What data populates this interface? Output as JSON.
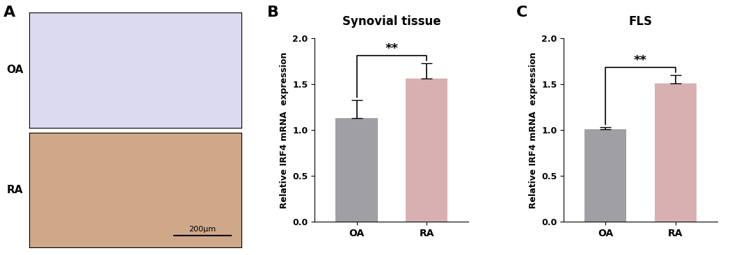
{
  "image_panel": {
    "panel": "A",
    "rows": [
      "OA",
      "RA"
    ],
    "scale_bar": "200µm"
  },
  "chart_data": [
    {
      "type": "bar",
      "panel": "B",
      "title": "Synovial tissue",
      "y_label": "Relative IRF4 mRNA  expression",
      "categories": [
        "OA",
        "RA"
      ],
      "values": [
        1.13,
        1.56
      ],
      "errors": [
        0.2,
        0.17
      ],
      "colors": [
        "#a09fa4",
        "#d9b0b1"
      ],
      "ylim": [
        0,
        2.0
      ],
      "yticks": [
        {
          "value": 0,
          "label": "0.0"
        },
        {
          "value": 0.5,
          "label": "0.5"
        },
        {
          "value": 1.0,
          "label": "1.0"
        },
        {
          "value": 1.5,
          "label": "1.5"
        },
        {
          "value": 2.0,
          "label": "2.0"
        }
      ],
      "annotations": [
        {
          "text": "**"
        }
      ]
    },
    {
      "type": "bar",
      "panel": "C",
      "title": "FLS",
      "y_label": "Relative IRF4 mRNA  expression",
      "categories": [
        "OA",
        "RA"
      ],
      "values": [
        1.01,
        1.51
      ],
      "errors": [
        0.02,
        0.09
      ],
      "colors": [
        "#a09fa4",
        "#d9b0b1"
      ],
      "ylim": [
        0,
        2.0
      ],
      "yticks": [
        {
          "value": 0,
          "label": "0.0"
        },
        {
          "value": 0.5,
          "label": "0.5"
        },
        {
          "value": 1.0,
          "label": "1.0"
        },
        {
          "value": 1.5,
          "label": "1.5"
        },
        {
          "value": 2.0,
          "label": "2.0"
        }
      ],
      "annotations": [
        {
          "text": "**"
        }
      ]
    }
  ]
}
